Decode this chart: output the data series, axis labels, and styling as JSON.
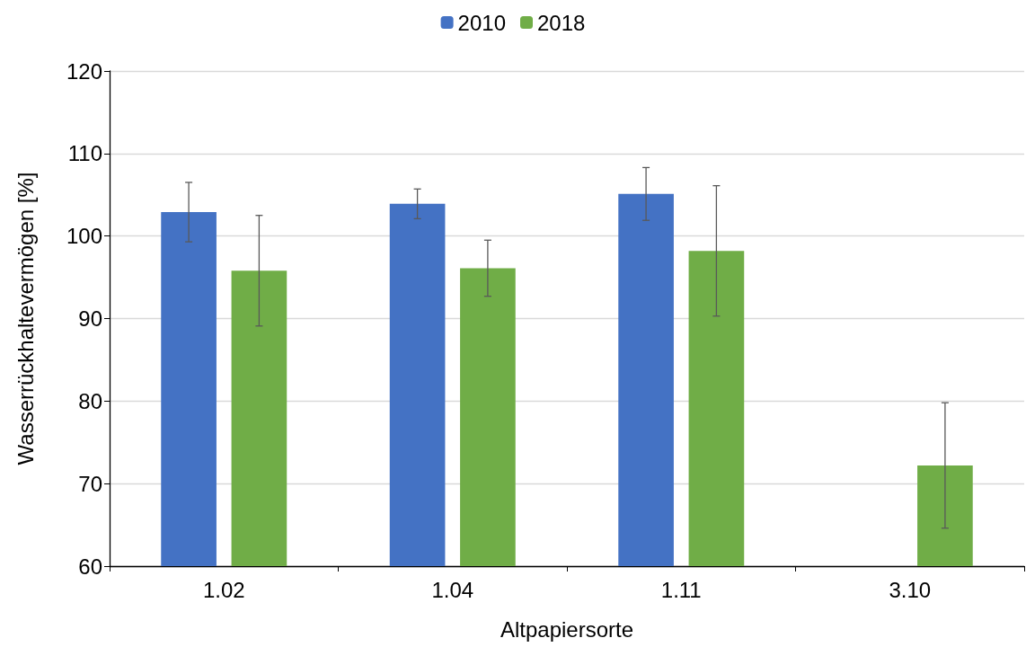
{
  "chart_data": {
    "type": "bar",
    "xlabel": "Altpapiersorte",
    "ylabel": "Wasserrückhaltevermögen [%]",
    "categories": [
      "1.02",
      "1.04",
      "1.11",
      "3.10"
    ],
    "series": [
      {
        "name": "2010",
        "color": "#4472c4",
        "values": [
          102.9,
          103.9,
          105.1,
          null
        ],
        "errors": [
          3.6,
          1.8,
          3.2,
          null
        ]
      },
      {
        "name": "2018",
        "color": "#70ad47",
        "values": [
          95.8,
          96.1,
          98.2,
          72.2
        ],
        "errors": [
          6.7,
          3.4,
          7.9,
          7.6
        ]
      }
    ],
    "ylim": [
      60,
      120
    ],
    "yticks": [
      60,
      70,
      80,
      90,
      100,
      110,
      120
    ],
    "grid": "y",
    "legend": "top"
  }
}
